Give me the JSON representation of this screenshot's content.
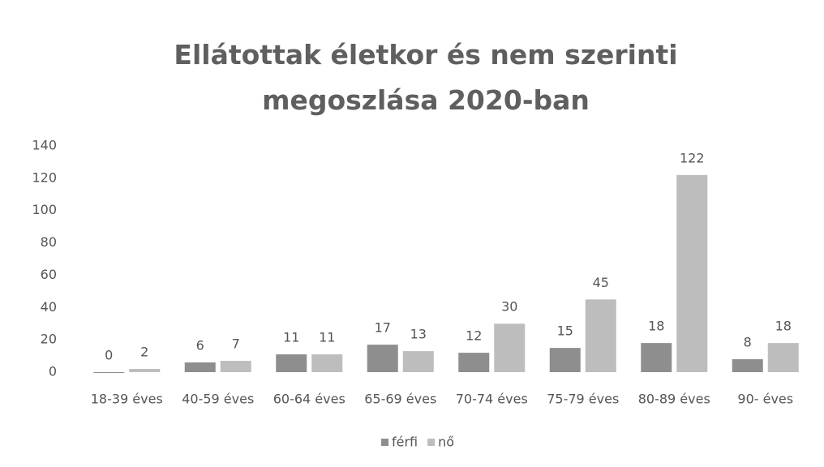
{
  "chart_data": {
    "type": "bar",
    "title": "Ellátottak életkor és nem szerinti megoszlása 2020-ban",
    "categories": [
      "18-39 éves",
      "40-59 éves",
      "60-64 éves",
      "65-69 éves",
      "70-74 éves",
      "75-79 éves",
      "80-89 éves",
      "90- éves"
    ],
    "series": [
      {
        "name": "férfi",
        "color": "#8e8e8e",
        "values": [
          0,
          6,
          11,
          17,
          12,
          15,
          18,
          8
        ]
      },
      {
        "name": "nő",
        "color": "#bdbdbd",
        "values": [
          2,
          7,
          11,
          13,
          30,
          45,
          122,
          18
        ]
      }
    ],
    "ylim": [
      0,
      140
    ],
    "yticks": [
      0,
      20,
      40,
      60,
      80,
      100,
      120,
      140
    ],
    "grid": false,
    "legend": "bottom"
  }
}
